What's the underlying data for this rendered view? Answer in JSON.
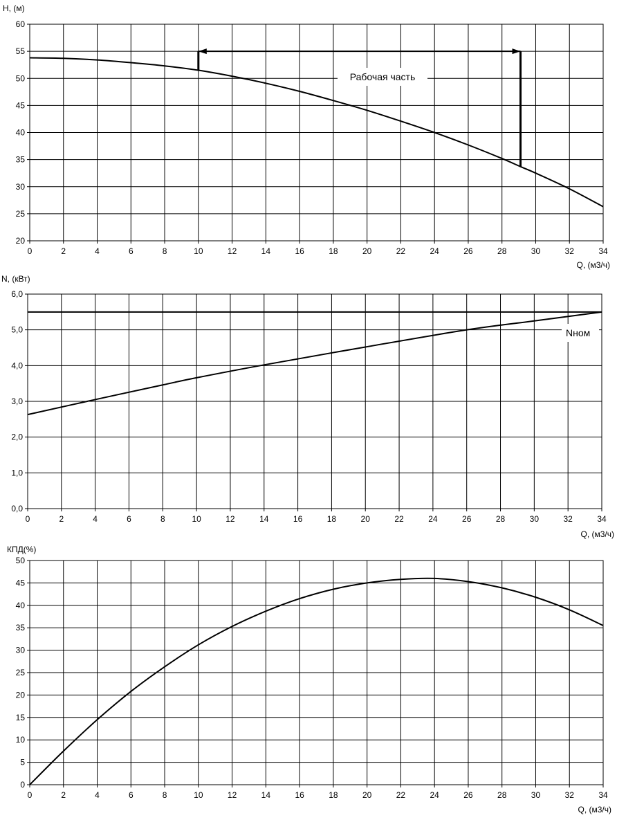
{
  "chart_data": [
    {
      "type": "line",
      "ylabel": "H, (м)",
      "xlabel": "Q, (м3/ч)",
      "xlim": [
        0,
        34
      ],
      "xstep": 2,
      "ylim": [
        20,
        60
      ],
      "ystep": 5,
      "grid": true,
      "series": [
        {
          "x": [
            0,
            2,
            4,
            6,
            8,
            10,
            12,
            14,
            16,
            18,
            20,
            22,
            24,
            26,
            28,
            29.1,
            30,
            32,
            34
          ],
          "y": [
            53.8,
            53.7,
            53.4,
            52.9,
            52.3,
            51.5,
            50.4,
            49.1,
            47.6,
            45.9,
            44.1,
            42.1,
            40.0,
            37.7,
            35.2,
            33.7,
            32.5,
            29.6,
            26.3
          ]
        }
      ],
      "annotation": {
        "text": "Рабочая часть",
        "range_q": [
          10,
          29.1
        ],
        "arrow_h": 55,
        "ends_h": [
          51.4,
          33.7
        ]
      }
    },
    {
      "type": "line",
      "ylabel": "N, (кВт)",
      "xlabel": "Q, (м3/ч)",
      "xlim": [
        0,
        34
      ],
      "xstep": 2,
      "ylim": [
        0,
        6
      ],
      "ystep": 1,
      "ytick_decimals": 1,
      "grid": true,
      "series": [
        {
          "x": [
            0,
            4,
            8,
            10,
            14,
            20,
            26,
            30,
            34
          ],
          "y": [
            2.63,
            3.05,
            3.46,
            3.66,
            4.02,
            4.52,
            5.0,
            5.25,
            5.5
          ]
        }
      ],
      "reference_line": {
        "label": "Nном",
        "value": 5.5
      }
    },
    {
      "type": "line",
      "ylabel": "КПД(%)",
      "xlabel": "Q, (м3/ч)",
      "xlim": [
        0,
        34
      ],
      "xstep": 2,
      "ylim": [
        0,
        50
      ],
      "ystep": 5,
      "grid": true,
      "series": [
        {
          "x": [
            0,
            2,
            4,
            6,
            8,
            10,
            12,
            14,
            16,
            18,
            20,
            22,
            24,
            26,
            28,
            30,
            32,
            34
          ],
          "y": [
            0,
            7.5,
            14.5,
            20.8,
            26.3,
            31.2,
            35.3,
            38.7,
            41.5,
            43.6,
            45.0,
            45.8,
            46.0,
            45.3,
            43.9,
            41.8,
            39.0,
            35.5
          ]
        }
      ]
    }
  ]
}
